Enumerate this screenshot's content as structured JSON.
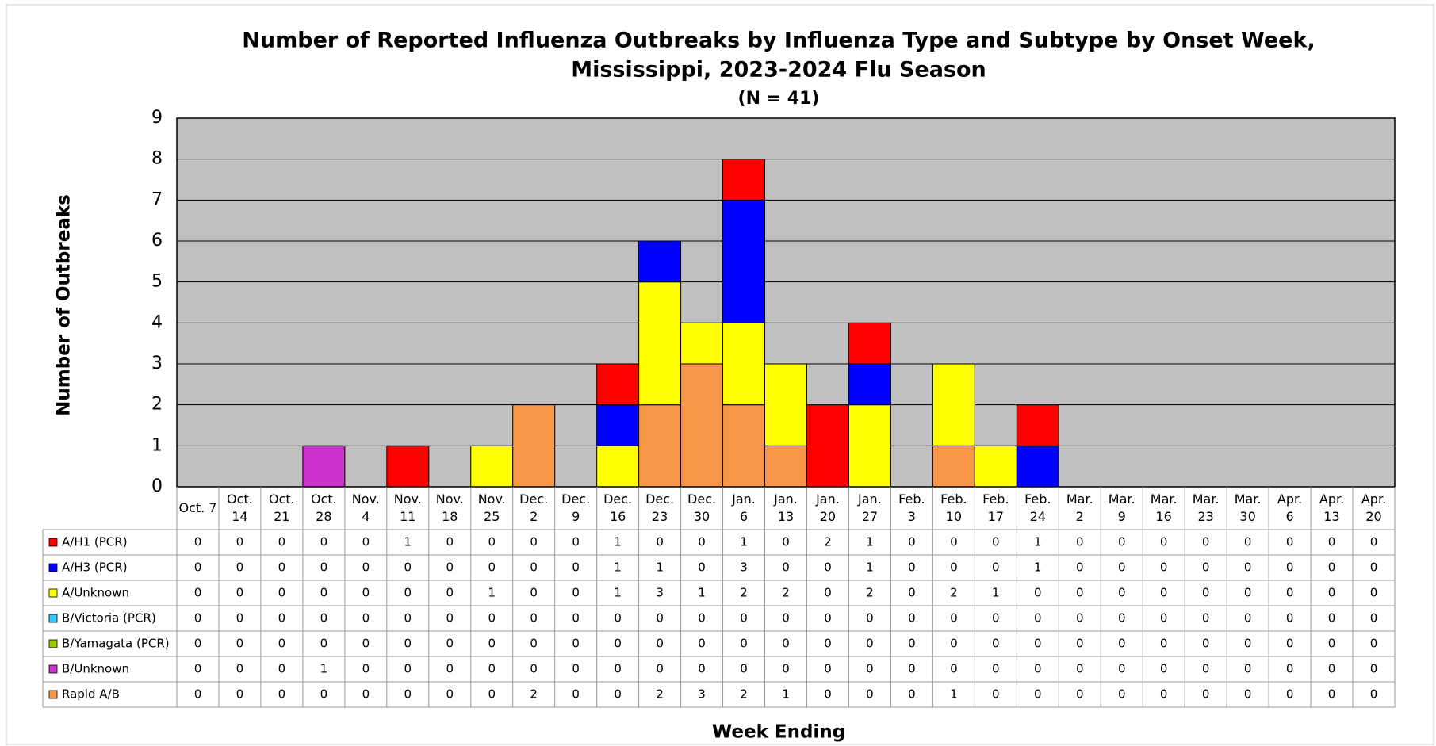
{
  "chart_data": {
    "type": "stacked_bar",
    "title": [
      "Number of Reported Influenza Outbreaks by Influenza Type and Subtype by Onset Week,",
      "Mississippi, 2023-2024 Flu Season"
    ],
    "subtitle": "(N = 41)",
    "x_label": "Week Ending",
    "y_label": "Number of Outbreaks",
    "categories": [
      "Oct. 7",
      "Oct.\n14",
      "Oct.\n21",
      "Oct.\n28",
      "Nov.\n4",
      "Nov.\n11",
      "Nov.\n18",
      "Nov.\n25",
      "Dec.\n2",
      "Dec.\n9",
      "Dec.\n16",
      "Dec.\n23",
      "Dec.\n30",
      "Jan.\n6",
      "Jan.\n13",
      "Jan.\n20",
      "Jan.\n27",
      "Feb.\n3",
      "Feb.\n10",
      "Feb.\n17",
      "Feb.\n24",
      "Mar.\n2",
      "Mar.\n9",
      "Mar.\n16",
      "Mar.\n23",
      "Mar.\n30",
      "Apr.\n6",
      "Apr.\n13",
      "Apr.\n20"
    ],
    "series": [
      {
        "name": "A/H1 (PCR)",
        "color": "#ff0000",
        "values": [
          0,
          0,
          0,
          0,
          0,
          1,
          0,
          0,
          0,
          0,
          1,
          0,
          0,
          1,
          0,
          2,
          1,
          0,
          0,
          0,
          1,
          0,
          0,
          0,
          0,
          0,
          0,
          0,
          0
        ]
      },
      {
        "name": "A/H3 (PCR)",
        "color": "#0000ff",
        "values": [
          0,
          0,
          0,
          0,
          0,
          0,
          0,
          0,
          0,
          0,
          1,
          1,
          0,
          3,
          0,
          0,
          1,
          0,
          0,
          0,
          1,
          0,
          0,
          0,
          0,
          0,
          0,
          0,
          0
        ]
      },
      {
        "name": "A/Unknown",
        "color": "#ffff00",
        "values": [
          0,
          0,
          0,
          0,
          0,
          0,
          0,
          1,
          0,
          0,
          1,
          3,
          1,
          2,
          2,
          0,
          2,
          0,
          2,
          1,
          0,
          0,
          0,
          0,
          0,
          0,
          0,
          0,
          0
        ]
      },
      {
        "name": "B/Victoria (PCR)",
        "color": "#33ccff",
        "values": [
          0,
          0,
          0,
          0,
          0,
          0,
          0,
          0,
          0,
          0,
          0,
          0,
          0,
          0,
          0,
          0,
          0,
          0,
          0,
          0,
          0,
          0,
          0,
          0,
          0,
          0,
          0,
          0,
          0
        ]
      },
      {
        "name": "B/Yamagata (PCR)",
        "color": "#99cc00",
        "values": [
          0,
          0,
          0,
          0,
          0,
          0,
          0,
          0,
          0,
          0,
          0,
          0,
          0,
          0,
          0,
          0,
          0,
          0,
          0,
          0,
          0,
          0,
          0,
          0,
          0,
          0,
          0,
          0,
          0
        ]
      },
      {
        "name": "B/Unknown",
        "color": "#cc33cc",
        "values": [
          0,
          0,
          0,
          1,
          0,
          0,
          0,
          0,
          0,
          0,
          0,
          0,
          0,
          0,
          0,
          0,
          0,
          0,
          0,
          0,
          0,
          0,
          0,
          0,
          0,
          0,
          0,
          0,
          0
        ]
      },
      {
        "name": "Rapid A/B",
        "color": "#f79646",
        "values": [
          0,
          0,
          0,
          0,
          0,
          0,
          0,
          0,
          2,
          0,
          0,
          2,
          3,
          2,
          1,
          0,
          0,
          0,
          1,
          0,
          0,
          0,
          0,
          0,
          0,
          0,
          0,
          0,
          0
        ]
      }
    ],
    "ylim": [
      0,
      9
    ],
    "yticks": [
      0,
      1,
      2,
      3,
      4,
      5,
      6,
      7,
      8,
      9
    ],
    "grid": true
  }
}
